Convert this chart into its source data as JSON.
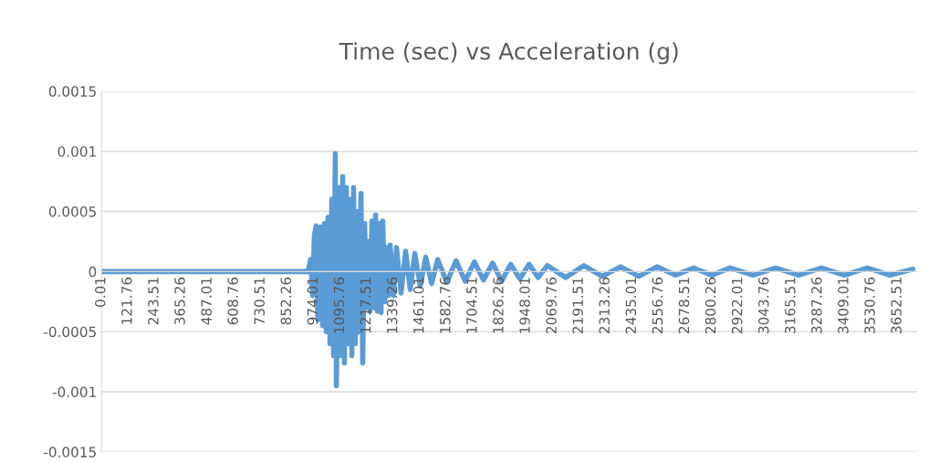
{
  "chart_data": {
    "type": "line",
    "title": "Time (sec) vs Acceleration (g)",
    "x": [
      0.01,
      948,
      960,
      969,
      977,
      985,
      993,
      1006,
      1015,
      1023,
      1032,
      1040,
      1049,
      1057,
      1065,
      1073,
      1078,
      1090,
      1098,
      1107,
      1115,
      1124,
      1132,
      1140,
      1149,
      1157,
      1165,
      1174,
      1182,
      1191,
      1199,
      1208,
      1216,
      1224,
      1233,
      1241,
      1250,
      1258,
      1266,
      1275,
      1283,
      1291,
      1300,
      1308,
      1317,
      1325,
      1340,
      1354,
      1375,
      1396,
      1417,
      1438,
      1463,
      1488,
      1515,
      1543,
      1585,
      1627,
      1669,
      1711,
      1753,
      1795,
      1836,
      1878,
      1920,
      1962,
      2004,
      2046,
      2130,
      2214,
      2298,
      2382,
      2466,
      2549,
      2633,
      2717,
      2801,
      2885,
      2990,
      3094,
      3199,
      3304,
      3409,
      3514,
      3618,
      3723
    ],
    "series": [
      {
        "color": "#5b9bd5",
        "values": [
          0,
          0,
          0.0001,
          -0.0002,
          0.0003,
          0.00038,
          -0.0004,
          0.00037,
          -0.00045,
          0.0004,
          -0.0005,
          0.00045,
          -0.0006,
          0.0006,
          -0.0007,
          0.00098,
          -0.00095,
          0.0007,
          -0.0007,
          0.00079,
          -0.00076,
          0.0007,
          -0.0006,
          0.0006,
          -0.0007,
          0.0007,
          -0.0006,
          0.0005,
          -0.0005,
          0.00065,
          -0.00076,
          0.0004,
          -0.0003,
          0.00025,
          -0.00033,
          0.00042,
          -0.0003,
          0.00047,
          -0.00033,
          0.0004,
          -0.00034,
          0.00042,
          -0.00025,
          0.0002,
          -0.0002,
          0.00022,
          -0.0002,
          0.0002,
          -0.00018,
          0.00017,
          -0.00015,
          0.00015,
          -0.00012,
          0.00012,
          -0.0001,
          0.0001,
          -9e-05,
          9e-05,
          -8e-05,
          8e-05,
          -7e-05,
          7e-05,
          -8e-05,
          6e-05,
          -6e-05,
          6e-05,
          -5e-05,
          5e-05,
          -5e-05,
          5e-05,
          -4e-05,
          4e-05,
          -4e-05,
          4e-05,
          -3e-05,
          3e-05,
          -3e-05,
          3e-05,
          -3e-05,
          3e-05,
          -3e-05,
          3e-05,
          -3e-05,
          3e-05,
          -3e-05,
          2e-05
        ]
      }
    ],
    "xlim": [
      0.01,
      3744
    ],
    "xticks": [
      0.01,
      121.76,
      243.51,
      365.26,
      487.01,
      608.76,
      730.51,
      852.26,
      974.01,
      1095.76,
      1217.51,
      1339.26,
      1461.01,
      1582.76,
      1704.51,
      1826.26,
      1948.01,
      2069.76,
      2191.51,
      2313.26,
      2435.01,
      2556.76,
      2678.51,
      2800.26,
      2922.01,
      3043.76,
      3165.51,
      3287.26,
      3409.01,
      3530.76,
      3652.51
    ],
    "ylim": [
      -0.0015,
      0.0015
    ],
    "yticks": [
      -0.0015,
      -0.001,
      -0.0005,
      0,
      0.0005,
      0.001,
      0.0015
    ],
    "grid": "y",
    "marker": "none",
    "line_style": "solid"
  }
}
